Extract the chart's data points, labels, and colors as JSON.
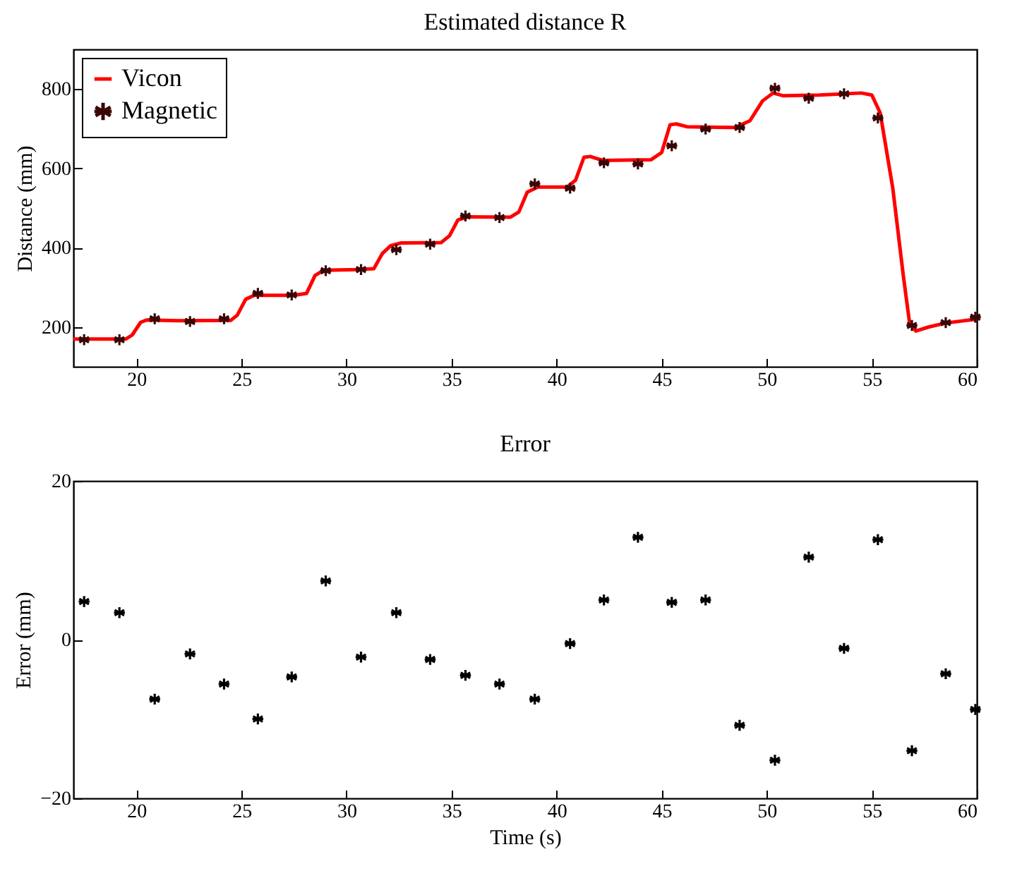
{
  "chart_data": [
    {
      "type": "line",
      "title": "Estimated distance R",
      "ylabel": "Distance (mm)",
      "xlim": [
        17,
        60
      ],
      "xticks": [
        20,
        25,
        30,
        35,
        40,
        45,
        50,
        55,
        60
      ],
      "ylim": [
        100,
        900
      ],
      "yticks": [
        200,
        400,
        600,
        800
      ],
      "legend": "top left",
      "grid": false,
      "series": [
        {
          "name": "Vicon",
          "type": "line",
          "color": "#ff0000",
          "line_style": "solid",
          "x": [
            17,
            19.5,
            19.8,
            20.2,
            20.5,
            22,
            24.5,
            24.8,
            25.2,
            25.6,
            27.5,
            28.1,
            28.5,
            28.9,
            30.5,
            31.3,
            31.7,
            32.1,
            32.6,
            34.5,
            34.9,
            35.3,
            35.8,
            37.8,
            38.2,
            38.6,
            39.1,
            40.5,
            40.9,
            41.3,
            41.6,
            42.2,
            44.5,
            45.0,
            45.4,
            45.7,
            46.2,
            48.5,
            49.2,
            49.8,
            50.3,
            50.8,
            52.5,
            54.5,
            55.0,
            55.4,
            56.0,
            56.5,
            56.8,
            57.1,
            57.7,
            58.5,
            60
          ],
          "values": [
            170,
            170,
            180,
            212,
            218,
            216,
            217,
            230,
            270,
            280,
            280,
            285,
            330,
            343,
            345,
            347,
            385,
            405,
            412,
            413,
            430,
            470,
            478,
            477,
            490,
            540,
            553,
            553,
            570,
            628,
            630,
            620,
            622,
            640,
            710,
            712,
            705,
            703,
            720,
            770,
            790,
            783,
            785,
            790,
            785,
            740,
            550,
            330,
            210,
            190,
            200,
            210,
            220
          ]
        },
        {
          "name": "Magnetic",
          "type": "scatter",
          "marker": "cross",
          "color": "#3a0505",
          "x": [
            17.51,
            19.19,
            20.87,
            22.55,
            24.17,
            25.78,
            27.39,
            29.01,
            30.69,
            32.37,
            33.98,
            35.66,
            37.28,
            38.96,
            40.64,
            42.25,
            43.87,
            45.48,
            47.09,
            48.71,
            50.39,
            52.0,
            53.68,
            55.29,
            56.91,
            58.52,
            59.93
          ],
          "values": [
            168,
            168,
            221,
            214,
            221,
            285,
            281,
            342,
            345,
            395,
            409,
            480,
            476,
            561,
            550,
            614,
            611,
            657,
            699,
            703,
            802,
            777,
            788,
            727,
            204,
            211,
            225
          ]
        }
      ]
    },
    {
      "type": "scatter",
      "title": "Error",
      "xlabel": "Time (s)",
      "ylabel": "Error (mm)",
      "xlim": [
        17,
        60
      ],
      "xticks": [
        20,
        25,
        30,
        35,
        40,
        45,
        50,
        55,
        60
      ],
      "ylim": [
        -20,
        20
      ],
      "yticks": [
        -20,
        0,
        20
      ],
      "grid": false,
      "legend": false,
      "marker": "cross",
      "color": "#000000",
      "x": [
        17.51,
        19.19,
        20.87,
        22.55,
        24.17,
        25.78,
        27.39,
        29.01,
        30.69,
        32.37,
        33.98,
        35.66,
        37.28,
        38.96,
        40.64,
        42.25,
        43.87,
        45.48,
        47.09,
        48.71,
        50.39,
        52.0,
        53.68,
        55.29,
        56.91,
        58.52,
        59.93
      ],
      "values": [
        4.8,
        3.4,
        -7.5,
        -1.8,
        -5.6,
        -10.0,
        -4.7,
        7.4,
        -2.2,
        3.4,
        -2.5,
        -4.5,
        -5.6,
        -7.5,
        -0.5,
        5.0,
        12.9,
        4.7,
        5.0,
        -10.8,
        -15.2,
        10.4,
        -1.1,
        12.6,
        -14.0,
        -4.3,
        -8.8
      ]
    }
  ]
}
